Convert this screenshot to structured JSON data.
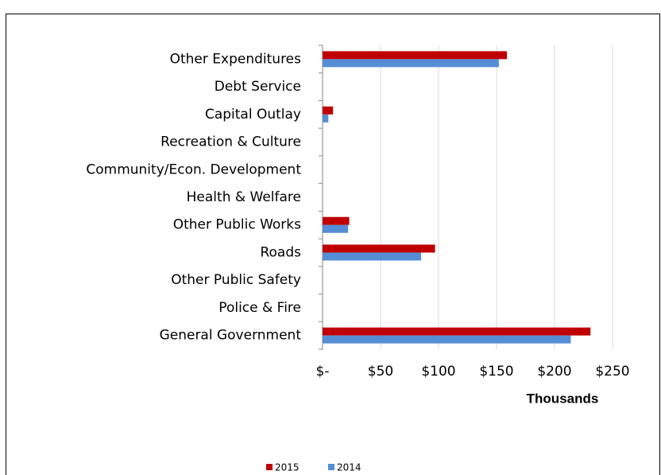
{
  "chart_data": {
    "type": "bar",
    "orientation": "horizontal",
    "categories": [
      "Other Expenditures",
      "Debt Service",
      "Capital Outlay",
      "Recreation & Culture",
      "Community/Econ. Development",
      "Health & Welfare",
      "Other Public Works",
      "Roads",
      "Other Public Safety",
      "Police & Fire",
      "General Government"
    ],
    "series": [
      {
        "name": "2015",
        "color": "#c00000",
        "values": [
          159,
          0,
          9,
          0,
          0,
          0,
          23,
          97,
          0,
          0,
          231
        ]
      },
      {
        "name": "2014",
        "color": "#558ed5",
        "values": [
          152,
          0,
          5,
          0,
          0,
          0,
          22,
          85,
          0,
          0,
          214
        ]
      }
    ],
    "xlim": [
      0,
      250
    ],
    "xticks": [
      {
        "value": 0,
        "label": "$-"
      },
      {
        "value": 50,
        "label": "$50"
      },
      {
        "value": 100,
        "label": "$100"
      },
      {
        "value": 150,
        "label": "$150"
      },
      {
        "value": 200,
        "label": "$200"
      },
      {
        "value": 250,
        "label": "$250"
      }
    ],
    "xlabel": "Thousands",
    "grid": true,
    "legend": "bottom"
  }
}
